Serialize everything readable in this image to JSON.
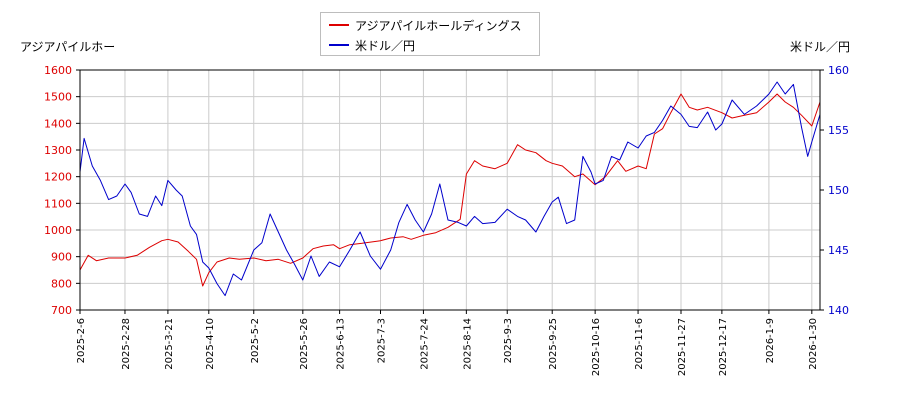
{
  "colors": {
    "left_series": "#dd0000",
    "right_series": "#0000cc",
    "grid": "#cccccc",
    "frame": "#000000"
  },
  "legend": {
    "items": [
      {
        "label": "アジアパイルホールディングス"
      },
      {
        "label": "米ドル／円"
      }
    ],
    "placement": "top-center"
  },
  "axes": {
    "left_title": "アジアパイルホー",
    "right_title": "米ドル／円"
  },
  "chart_data": {
    "type": "line",
    "grid": true,
    "x_ticks": [
      "2025-2-6",
      "2025-2-28",
      "2025-3-21",
      "2025-4-10",
      "2025-5-2",
      "2025-5-26",
      "2025-6-13",
      "2025-7-3",
      "2025-7-24",
      "2025-8-14",
      "2025-9-3",
      "2025-9-25",
      "2025-10-16",
      "2025-11-6",
      "2025-11-27",
      "2025-12-17",
      "2026-1-9",
      "2026-1-30"
    ],
    "y_left": {
      "ticks": [
        700,
        800,
        900,
        1000,
        1100,
        1200,
        1300,
        1400,
        1500,
        1600
      ],
      "range": [
        700,
        1600
      ],
      "color": "#dd0000"
    },
    "y_right": {
      "ticks": [
        140,
        145,
        150,
        155,
        160
      ],
      "range": [
        140,
        160
      ],
      "color": "#0000cc"
    },
    "series": [
      {
        "name": "アジアパイルホールディングス",
        "axis": "left",
        "color": "#dd0000",
        "points": [
          [
            "2025-2-6",
            850
          ],
          [
            "2025-2-10",
            905
          ],
          [
            "2025-2-14",
            885
          ],
          [
            "2025-2-20",
            895
          ],
          [
            "2025-2-28",
            895
          ],
          [
            "2025-3-6",
            905
          ],
          [
            "2025-3-12",
            935
          ],
          [
            "2025-3-18",
            960
          ],
          [
            "2025-3-21",
            965
          ],
          [
            "2025-3-26",
            955
          ],
          [
            "2025-3-31",
            920
          ],
          [
            "2025-4-4",
            890
          ],
          [
            "2025-4-7",
            790
          ],
          [
            "2025-4-10",
            840
          ],
          [
            "2025-4-14",
            880
          ],
          [
            "2025-4-20",
            895
          ],
          [
            "2025-4-25",
            890
          ],
          [
            "2025-5-2",
            895
          ],
          [
            "2025-5-8",
            885
          ],
          [
            "2025-5-14",
            890
          ],
          [
            "2025-5-20",
            875
          ],
          [
            "2025-5-26",
            895
          ],
          [
            "2025-5-31",
            930
          ],
          [
            "2025-6-5",
            940
          ],
          [
            "2025-6-10",
            945
          ],
          [
            "2025-6-13",
            930
          ],
          [
            "2025-6-18",
            945
          ],
          [
            "2025-6-24",
            950
          ],
          [
            "2025-7-3",
            960
          ],
          [
            "2025-7-8",
            970
          ],
          [
            "2025-7-14",
            975
          ],
          [
            "2025-7-18",
            965
          ],
          [
            "2025-7-24",
            980
          ],
          [
            "2025-7-30",
            990
          ],
          [
            "2025-8-5",
            1010
          ],
          [
            "2025-8-11",
            1040
          ],
          [
            "2025-8-14",
            1210
          ],
          [
            "2025-8-18",
            1260
          ],
          [
            "2025-8-22",
            1240
          ],
          [
            "2025-8-28",
            1230
          ],
          [
            "2025-9-3",
            1250
          ],
          [
            "2025-9-8",
            1320
          ],
          [
            "2025-9-12",
            1300
          ],
          [
            "2025-9-17",
            1290
          ],
          [
            "2025-9-22",
            1260
          ],
          [
            "2025-9-25",
            1250
          ],
          [
            "2025-9-30",
            1240
          ],
          [
            "2025-10-6",
            1200
          ],
          [
            "2025-10-10",
            1210
          ],
          [
            "2025-10-16",
            1170
          ],
          [
            "2025-10-21",
            1200
          ],
          [
            "2025-10-27",
            1260
          ],
          [
            "2025-10-31",
            1220
          ],
          [
            "2025-11-6",
            1240
          ],
          [
            "2025-11-10",
            1230
          ],
          [
            "2025-11-14",
            1360
          ],
          [
            "2025-11-18",
            1380
          ],
          [
            "2025-11-22",
            1440
          ],
          [
            "2025-11-27",
            1510
          ],
          [
            "2025-12-1",
            1460
          ],
          [
            "2025-12-5",
            1450
          ],
          [
            "2025-12-10",
            1460
          ],
          [
            "2025-12-17",
            1440
          ],
          [
            "2025-12-22",
            1420
          ],
          [
            "2025-12-28",
            1430
          ],
          [
            "2026-1-3",
            1440
          ],
          [
            "2026-1-9",
            1480
          ],
          [
            "2026-1-13",
            1510
          ],
          [
            "2026-1-17",
            1480
          ],
          [
            "2026-1-21",
            1460
          ],
          [
            "2026-1-25",
            1430
          ],
          [
            "2026-1-30",
            1390
          ],
          [
            "2026-2-3",
            1480
          ]
        ]
      },
      {
        "name": "米ドル／円",
        "axis": "right",
        "color": "#0000cc",
        "points": [
          [
            "2025-2-6",
            151.5
          ],
          [
            "2025-2-8",
            154.3
          ],
          [
            "2025-2-12",
            152.0
          ],
          [
            "2025-2-16",
            150.8
          ],
          [
            "2025-2-20",
            149.2
          ],
          [
            "2025-2-24",
            149.5
          ],
          [
            "2025-2-28",
            150.5
          ],
          [
            "2025-3-3",
            149.8
          ],
          [
            "2025-3-7",
            148.0
          ],
          [
            "2025-3-11",
            147.8
          ],
          [
            "2025-3-15",
            149.5
          ],
          [
            "2025-3-18",
            148.7
          ],
          [
            "2025-3-21",
            150.8
          ],
          [
            "2025-3-25",
            150.0
          ],
          [
            "2025-3-28",
            149.5
          ],
          [
            "2025-4-1",
            147.0
          ],
          [
            "2025-4-4",
            146.3
          ],
          [
            "2025-4-7",
            144.0
          ],
          [
            "2025-4-10",
            143.5
          ],
          [
            "2025-4-14",
            142.2
          ],
          [
            "2025-4-18",
            141.2
          ],
          [
            "2025-4-22",
            143.0
          ],
          [
            "2025-4-26",
            142.5
          ],
          [
            "2025-5-2",
            145.0
          ],
          [
            "2025-5-6",
            145.6
          ],
          [
            "2025-5-10",
            148.0
          ],
          [
            "2025-5-14",
            146.5
          ],
          [
            "2025-5-18",
            145.0
          ],
          [
            "2025-5-22",
            143.8
          ],
          [
            "2025-5-26",
            142.5
          ],
          [
            "2025-5-30",
            144.5
          ],
          [
            "2025-6-3",
            142.8
          ],
          [
            "2025-6-8",
            144.0
          ],
          [
            "2025-6-13",
            143.6
          ],
          [
            "2025-6-18",
            145.0
          ],
          [
            "2025-6-23",
            146.5
          ],
          [
            "2025-6-28",
            144.5
          ],
          [
            "2025-7-3",
            143.4
          ],
          [
            "2025-7-8",
            145.0
          ],
          [
            "2025-7-12",
            147.3
          ],
          [
            "2025-7-16",
            148.8
          ],
          [
            "2025-7-20",
            147.5
          ],
          [
            "2025-7-24",
            146.5
          ],
          [
            "2025-7-28",
            148.0
          ],
          [
            "2025-8-1",
            150.5
          ],
          [
            "2025-8-5",
            147.5
          ],
          [
            "2025-8-10",
            147.3
          ],
          [
            "2025-8-14",
            147.0
          ],
          [
            "2025-8-18",
            147.8
          ],
          [
            "2025-8-22",
            147.2
          ],
          [
            "2025-8-28",
            147.3
          ],
          [
            "2025-9-3",
            148.4
          ],
          [
            "2025-9-8",
            147.8
          ],
          [
            "2025-9-12",
            147.5
          ],
          [
            "2025-9-17",
            146.5
          ],
          [
            "2025-9-21",
            147.8
          ],
          [
            "2025-9-25",
            149.0
          ],
          [
            "2025-9-28",
            149.4
          ],
          [
            "2025-10-2",
            147.2
          ],
          [
            "2025-10-6",
            147.5
          ],
          [
            "2025-10-10",
            152.8
          ],
          [
            "2025-10-14",
            151.5
          ],
          [
            "2025-10-16",
            150.5
          ],
          [
            "2025-10-20",
            150.8
          ],
          [
            "2025-10-24",
            152.8
          ],
          [
            "2025-10-28",
            152.5
          ],
          [
            "2025-11-1",
            154.0
          ],
          [
            "2025-11-6",
            153.5
          ],
          [
            "2025-11-10",
            154.5
          ],
          [
            "2025-11-14",
            154.8
          ],
          [
            "2025-11-18",
            155.8
          ],
          [
            "2025-11-22",
            157.0
          ],
          [
            "2025-11-27",
            156.3
          ],
          [
            "2025-12-1",
            155.3
          ],
          [
            "2025-12-5",
            155.2
          ],
          [
            "2025-12-10",
            156.5
          ],
          [
            "2025-12-14",
            155.0
          ],
          [
            "2025-12-17",
            155.5
          ],
          [
            "2025-12-22",
            157.5
          ],
          [
            "2025-12-28",
            156.3
          ],
          [
            "2026-1-3",
            157.0
          ],
          [
            "2026-1-6",
            157.5
          ],
          [
            "2026-1-9",
            158.0
          ],
          [
            "2026-1-13",
            159.0
          ],
          [
            "2026-1-17",
            158.0
          ],
          [
            "2026-1-21",
            158.8
          ],
          [
            "2026-1-25",
            155.2
          ],
          [
            "2026-1-28",
            152.8
          ],
          [
            "2026-1-30",
            154.0
          ],
          [
            "2026-2-3",
            156.3
          ]
        ]
      }
    ]
  }
}
